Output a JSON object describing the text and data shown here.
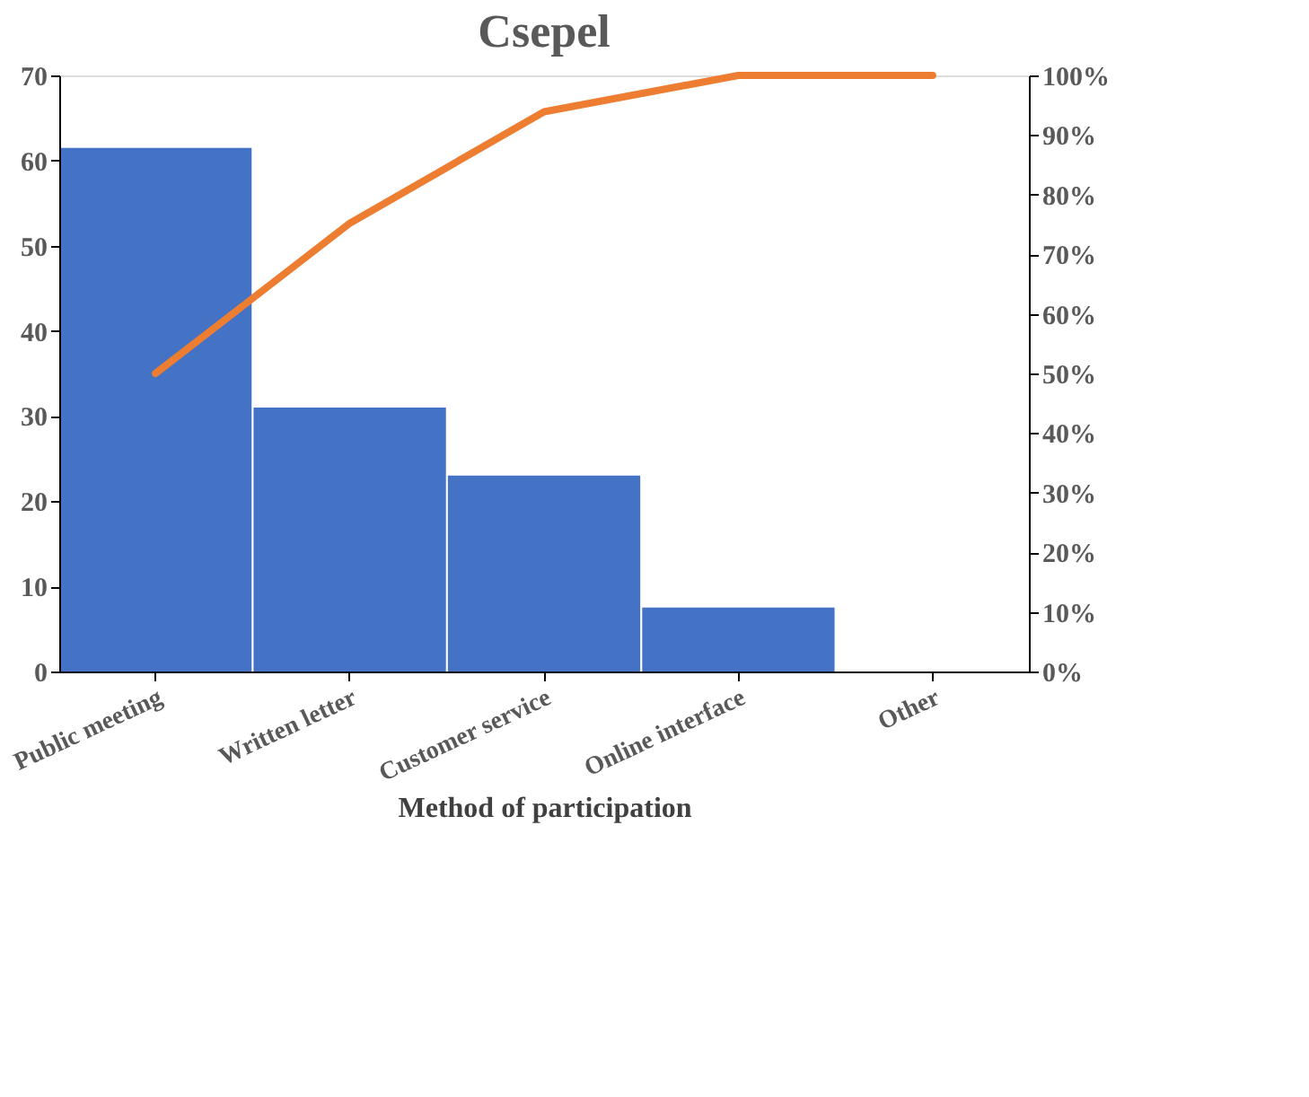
{
  "chart_data": {
    "type": "bar",
    "title": "Csepel",
    "xlabel": "Method of participation",
    "categories": [
      "Public meeting",
      "Written letter",
      "Customer service",
      "Online interface",
      "Other"
    ],
    "series": [
      {
        "color": "#4472c4",
        "values": [
          61.5,
          31,
          23,
          7.5,
          0
        ]
      },
      {
        "type": "line",
        "axis": "y2",
        "color": "#ed7d31",
        "values": [
          50,
          75.2,
          93.9,
          100,
          100
        ]
      }
    ],
    "ylim": [
      0,
      70
    ],
    "yticks": [
      0,
      10,
      20,
      30,
      40,
      50,
      60,
      70
    ],
    "y2lim": [
      0,
      100
    ],
    "y2ticks": [
      {
        "value": 0,
        "label": "0%"
      },
      {
        "value": 10,
        "label": "10%"
      },
      {
        "value": 20,
        "label": "20%"
      },
      {
        "value": 30,
        "label": "30%"
      },
      {
        "value": 40,
        "label": "40%"
      },
      {
        "value": 50,
        "label": "50%"
      },
      {
        "value": 60,
        "label": "60%"
      },
      {
        "value": 70,
        "label": "70%"
      },
      {
        "value": 80,
        "label": "80%"
      },
      {
        "value": 90,
        "label": "90%"
      },
      {
        "value": 100,
        "label": "100%"
      }
    ],
    "grid": false,
    "marker": "none",
    "line_style": "solid"
  }
}
